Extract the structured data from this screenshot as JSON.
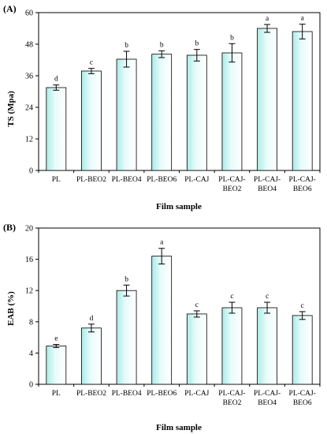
{
  "chart_data": [
    {
      "type": "bar",
      "panel_label": "(A)",
      "ylabel": "TS (Mpa)",
      "xlabel": "Film sample",
      "ylim": [
        0,
        60
      ],
      "yticks": [
        "0",
        "12",
        "24",
        "36",
        "48",
        "60"
      ],
      "categories": [
        [
          "PL"
        ],
        [
          "PL-BEO2"
        ],
        [
          "PL-BEO4"
        ],
        [
          "PL-BEO6"
        ],
        [
          "PL-CAJ"
        ],
        [
          "PL-CAJ-",
          "BEO2"
        ],
        [
          "PL-CAJ-",
          "BEO4"
        ],
        [
          "PL-CAJ-",
          "BEO6"
        ]
      ],
      "values": [
        31.5,
        37.8,
        42.3,
        44.2,
        43.8,
        44.7,
        54.0,
        52.8
      ],
      "errors": [
        1.0,
        1.0,
        3.0,
        1.3,
        2.2,
        3.5,
        1.5,
        2.8
      ],
      "significance": [
        "d",
        "c",
        "b",
        "b",
        "b",
        "b",
        "a",
        "a"
      ],
      "grid": false
    },
    {
      "type": "bar",
      "panel_label": "(B)",
      "ylabel": "EAB (%)",
      "xlabel": "Film sample",
      "ylim": [
        0,
        20
      ],
      "yticks": [
        "0",
        "4",
        "8",
        "12",
        "16",
        "20"
      ],
      "categories": [
        [
          "PL"
        ],
        [
          "PL-BEO2"
        ],
        [
          "PL-BEO4"
        ],
        [
          "PL-BEO6"
        ],
        [
          "PL-CAJ"
        ],
        [
          "PL-CAJ-",
          "BEO2"
        ],
        [
          "PL-CAJ-",
          "BEO4"
        ],
        [
          "PL-CAJ-",
          "BEO6"
        ]
      ],
      "values": [
        4.9,
        7.2,
        12.0,
        16.4,
        9.0,
        9.8,
        9.8,
        8.8
      ],
      "errors": [
        0.2,
        0.5,
        0.7,
        1.0,
        0.4,
        0.7,
        0.7,
        0.5
      ],
      "significance": [
        "e",
        "d",
        "b",
        "a",
        "c",
        "c",
        "c",
        "c"
      ],
      "grid": false
    }
  ]
}
